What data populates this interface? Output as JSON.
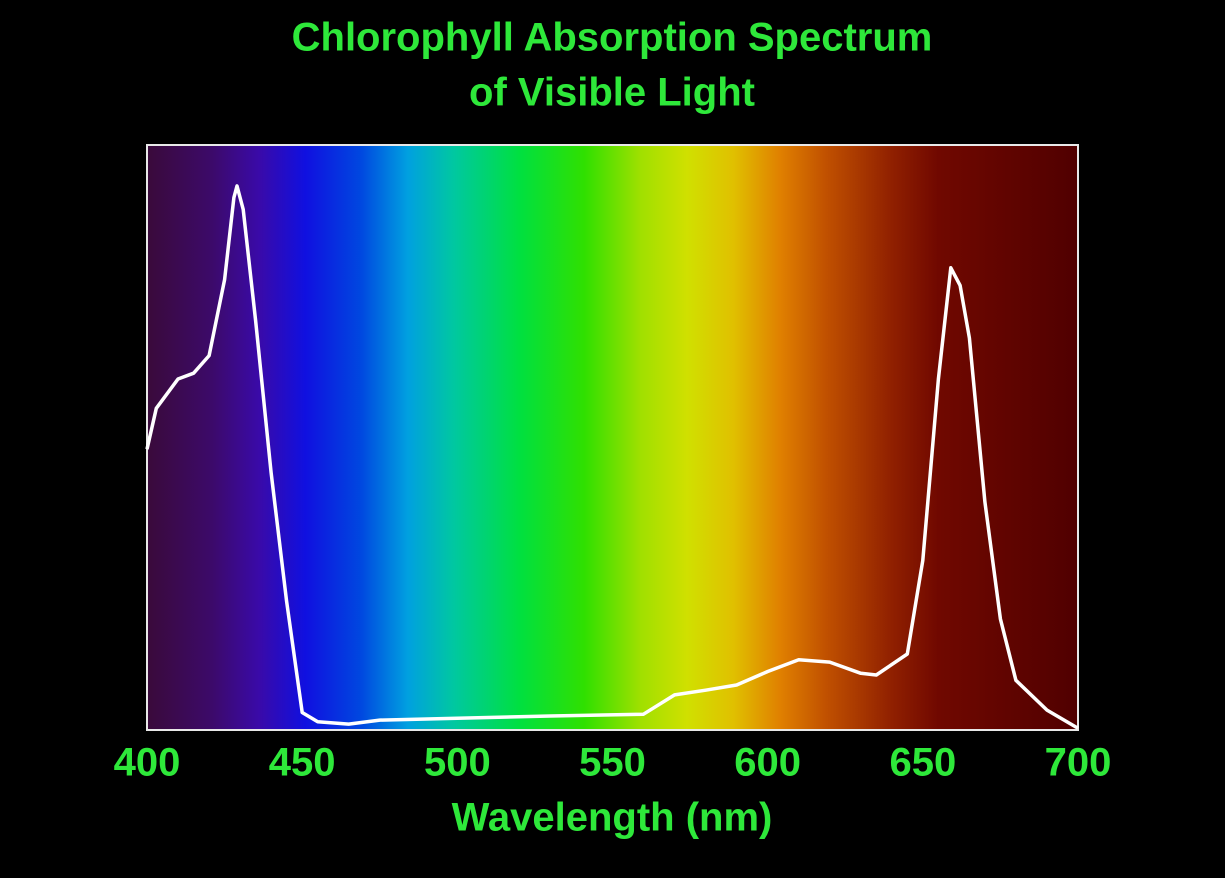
{
  "chart_data": {
    "type": "line",
    "title": [
      "Chlorophyll Absorption Spectrum",
      "of Visible Light"
    ],
    "x_label": "Wavelength (nm)",
    "x": [
      400,
      403,
      410,
      415,
      420,
      425,
      428,
      429,
      431,
      435,
      440,
      445,
      450,
      455,
      465,
      475,
      500,
      530,
      560,
      570,
      580,
      590,
      600,
      610,
      620,
      630,
      635,
      645,
      650,
      655,
      659,
      662,
      665,
      670,
      675,
      680,
      690,
      700
    ],
    "series": [
      {
        "color": "#ffffff",
        "values": [
          0.48,
          0.55,
          0.6,
          0.61,
          0.64,
          0.77,
          0.91,
          0.93,
          0.89,
          0.7,
          0.44,
          0.22,
          0.03,
          0.014,
          0.01,
          0.017,
          0.02,
          0.024,
          0.027,
          0.06,
          0.068,
          0.077,
          0.1,
          0.12,
          0.116,
          0.097,
          0.094,
          0.13,
          0.29,
          0.6,
          0.79,
          0.76,
          0.67,
          0.39,
          0.19,
          0.085,
          0.034,
          0.003
        ]
      }
    ],
    "xlim": [
      400,
      700
    ],
    "xticks": [
      400,
      450,
      500,
      550,
      600,
      650,
      700
    ],
    "ylim": [
      0,
      1
    ],
    "grid": false
  }
}
